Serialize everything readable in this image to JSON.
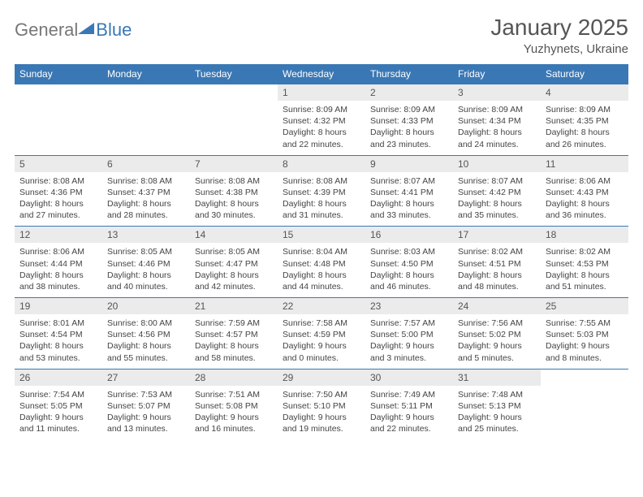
{
  "brand": {
    "part1": "General",
    "part2": "Blue"
  },
  "title": {
    "month": "January 2025",
    "location": "Yuzhynets, Ukraine"
  },
  "colors": {
    "header_bg": "#3a78b5",
    "header_fg": "#ffffff",
    "daynum_bg": "#ebebeb",
    "border": "#3a78b5",
    "text": "#555555"
  },
  "day_labels": [
    "Sunday",
    "Monday",
    "Tuesday",
    "Wednesday",
    "Thursday",
    "Friday",
    "Saturday"
  ],
  "weeks": [
    [
      null,
      null,
      null,
      {
        "n": "1",
        "sunrise": "8:09 AM",
        "sunset": "4:32 PM",
        "dl": "8 hours and 22 minutes."
      },
      {
        "n": "2",
        "sunrise": "8:09 AM",
        "sunset": "4:33 PM",
        "dl": "8 hours and 23 minutes."
      },
      {
        "n": "3",
        "sunrise": "8:09 AM",
        "sunset": "4:34 PM",
        "dl": "8 hours and 24 minutes."
      },
      {
        "n": "4",
        "sunrise": "8:09 AM",
        "sunset": "4:35 PM",
        "dl": "8 hours and 26 minutes."
      }
    ],
    [
      {
        "n": "5",
        "sunrise": "8:08 AM",
        "sunset": "4:36 PM",
        "dl": "8 hours and 27 minutes."
      },
      {
        "n": "6",
        "sunrise": "8:08 AM",
        "sunset": "4:37 PM",
        "dl": "8 hours and 28 minutes."
      },
      {
        "n": "7",
        "sunrise": "8:08 AM",
        "sunset": "4:38 PM",
        "dl": "8 hours and 30 minutes."
      },
      {
        "n": "8",
        "sunrise": "8:08 AM",
        "sunset": "4:39 PM",
        "dl": "8 hours and 31 minutes."
      },
      {
        "n": "9",
        "sunrise": "8:07 AM",
        "sunset": "4:41 PM",
        "dl": "8 hours and 33 minutes."
      },
      {
        "n": "10",
        "sunrise": "8:07 AM",
        "sunset": "4:42 PM",
        "dl": "8 hours and 35 minutes."
      },
      {
        "n": "11",
        "sunrise": "8:06 AM",
        "sunset": "4:43 PM",
        "dl": "8 hours and 36 minutes."
      }
    ],
    [
      {
        "n": "12",
        "sunrise": "8:06 AM",
        "sunset": "4:44 PM",
        "dl": "8 hours and 38 minutes."
      },
      {
        "n": "13",
        "sunrise": "8:05 AM",
        "sunset": "4:46 PM",
        "dl": "8 hours and 40 minutes."
      },
      {
        "n": "14",
        "sunrise": "8:05 AM",
        "sunset": "4:47 PM",
        "dl": "8 hours and 42 minutes."
      },
      {
        "n": "15",
        "sunrise": "8:04 AM",
        "sunset": "4:48 PM",
        "dl": "8 hours and 44 minutes."
      },
      {
        "n": "16",
        "sunrise": "8:03 AM",
        "sunset": "4:50 PM",
        "dl": "8 hours and 46 minutes."
      },
      {
        "n": "17",
        "sunrise": "8:02 AM",
        "sunset": "4:51 PM",
        "dl": "8 hours and 48 minutes."
      },
      {
        "n": "18",
        "sunrise": "8:02 AM",
        "sunset": "4:53 PM",
        "dl": "8 hours and 51 minutes."
      }
    ],
    [
      {
        "n": "19",
        "sunrise": "8:01 AM",
        "sunset": "4:54 PM",
        "dl": "8 hours and 53 minutes."
      },
      {
        "n": "20",
        "sunrise": "8:00 AM",
        "sunset": "4:56 PM",
        "dl": "8 hours and 55 minutes."
      },
      {
        "n": "21",
        "sunrise": "7:59 AM",
        "sunset": "4:57 PM",
        "dl": "8 hours and 58 minutes."
      },
      {
        "n": "22",
        "sunrise": "7:58 AM",
        "sunset": "4:59 PM",
        "dl": "9 hours and 0 minutes."
      },
      {
        "n": "23",
        "sunrise": "7:57 AM",
        "sunset": "5:00 PM",
        "dl": "9 hours and 3 minutes."
      },
      {
        "n": "24",
        "sunrise": "7:56 AM",
        "sunset": "5:02 PM",
        "dl": "9 hours and 5 minutes."
      },
      {
        "n": "25",
        "sunrise": "7:55 AM",
        "sunset": "5:03 PM",
        "dl": "9 hours and 8 minutes."
      }
    ],
    [
      {
        "n": "26",
        "sunrise": "7:54 AM",
        "sunset": "5:05 PM",
        "dl": "9 hours and 11 minutes."
      },
      {
        "n": "27",
        "sunrise": "7:53 AM",
        "sunset": "5:07 PM",
        "dl": "9 hours and 13 minutes."
      },
      {
        "n": "28",
        "sunrise": "7:51 AM",
        "sunset": "5:08 PM",
        "dl": "9 hours and 16 minutes."
      },
      {
        "n": "29",
        "sunrise": "7:50 AM",
        "sunset": "5:10 PM",
        "dl": "9 hours and 19 minutes."
      },
      {
        "n": "30",
        "sunrise": "7:49 AM",
        "sunset": "5:11 PM",
        "dl": "9 hours and 22 minutes."
      },
      {
        "n": "31",
        "sunrise": "7:48 AM",
        "sunset": "5:13 PM",
        "dl": "9 hours and 25 minutes."
      },
      null
    ]
  ]
}
